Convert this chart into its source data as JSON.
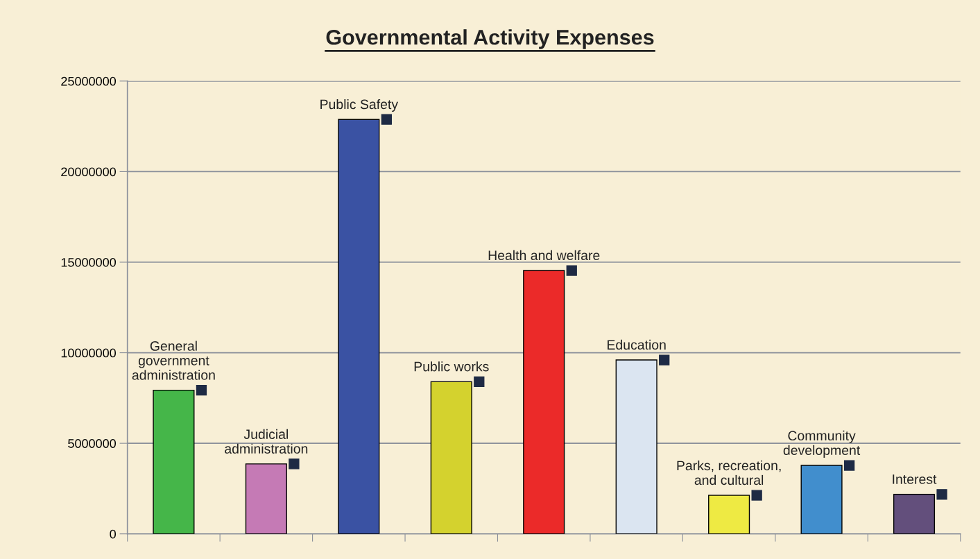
{
  "chart_data": {
    "type": "bar",
    "title": "Governmental Activity Expenses",
    "categories": [
      "General\ngovernment\nadministration",
      "Judicial\nadministration",
      "Public Safety",
      "Public works",
      "Health and welfare",
      "Education",
      "Parks, recreation,\nand cultural",
      "Community\ndevelopment",
      "Interest"
    ],
    "values": [
      7930000,
      3860000,
      22880000,
      8400000,
      14540000,
      9600000,
      2130000,
      3780000,
      2180000
    ],
    "colors": [
      "#45b649",
      "#c57ab5",
      "#3a52a3",
      "#d4d22e",
      "#eb2a29",
      "#dbe5f1",
      "#eeea43",
      "#418ecd",
      "#634f7c"
    ],
    "ylim": [
      0,
      25000000
    ],
    "yticks": [
      0,
      5000000,
      10000000,
      15000000,
      20000000,
      25000000
    ],
    "grid": "y",
    "tick_labels": "y"
  }
}
